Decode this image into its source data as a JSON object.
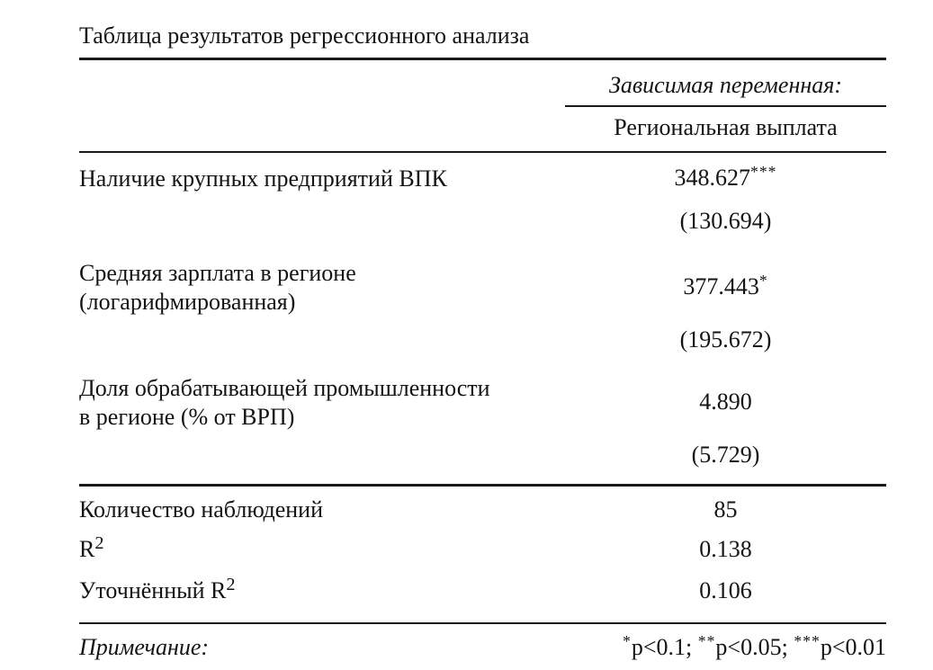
{
  "page": {
    "background": "#ffffff",
    "text_color": "#141414",
    "rule_color": "#1a1a1a"
  },
  "title": "Таблица результатов регрессионного анализа",
  "header": {
    "dependent_variable_label": "Зависимая переменная:",
    "dependent_variable_name": "Региональная выплата"
  },
  "coefficients": [
    {
      "label_line1": "Наличие крупных предприятий ВПК",
      "estimate": "348.627",
      "stars": "***",
      "std_error": "(130.694)"
    },
    {
      "label_line1": "Средняя зарплата в регионе",
      "label_line2": "(логарифмированная)",
      "estimate": "377.443",
      "stars": "*",
      "std_error": "(195.672)"
    },
    {
      "label_line1": "Доля обрабатывающей промышленности",
      "label_line2": "в регионе (% от ВРП)",
      "estimate": "4.890",
      "stars": "",
      "std_error": "(5.729)"
    }
  ],
  "statistics": [
    {
      "label": "Количество наблюдений",
      "superscript": "",
      "value": "85"
    },
    {
      "label": "R",
      "superscript": "2",
      "value": "0.138"
    },
    {
      "label": "Уточнённый R",
      "superscript": "2",
      "value": "0.106"
    }
  ],
  "note": {
    "label": "Примечание:",
    "segments": [
      {
        "stars": "*",
        "text": "p<0.1; "
      },
      {
        "stars": "**",
        "text": "p<0.05; "
      },
      {
        "stars": "***",
        "text": "p<0.01"
      }
    ]
  }
}
